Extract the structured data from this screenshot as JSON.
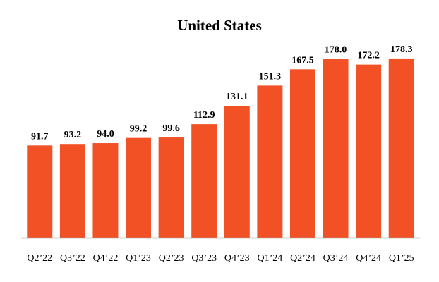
{
  "chart_data": {
    "type": "bar",
    "title": "United States",
    "xlabel": "",
    "ylabel": "",
    "categories": [
      "Q2’22",
      "Q3’22",
      "Q4’22",
      "Q1’23",
      "Q2’23",
      "Q3’23",
      "Q4’23",
      "Q1’24",
      "Q2’24",
      "Q3’24",
      "Q4’24",
      "Q1’25"
    ],
    "values": [
      91.7,
      93.2,
      94.0,
      99.2,
      99.6,
      112.9,
      131.1,
      151.3,
      167.5,
      178.0,
      172.2,
      178.3
    ],
    "data_labels": [
      "91.7",
      "93.2",
      "94.0",
      "99.2",
      "99.6",
      "112.9",
      "131.1",
      "151.3",
      "167.5",
      "178.0",
      "172.2",
      "178.3"
    ],
    "ylim": [
      0,
      200
    ],
    "grid": false,
    "legend": "none",
    "colors": {
      "bar": "#F15124",
      "axis": "#A6A6A6"
    }
  }
}
